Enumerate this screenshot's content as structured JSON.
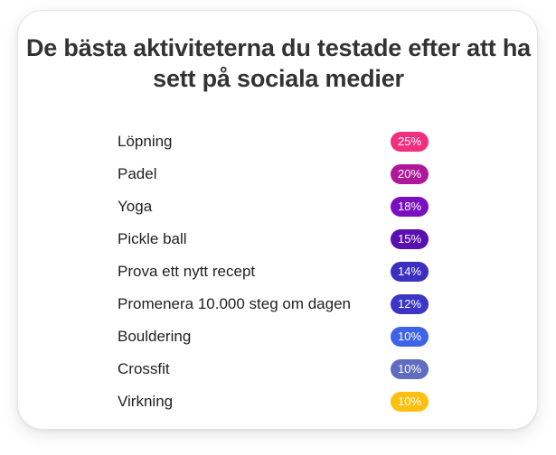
{
  "title": "De bästa aktiviteterna du testade efter att ha sett på sociala medier",
  "chart_data": {
    "type": "table",
    "title": "De bästa aktiviteterna du testade efter att ha sett på sociala medier",
    "unit": "%",
    "categories": [
      "Löpning",
      "Padel",
      "Yoga",
      "Pickle ball",
      "Prova ett nytt recept",
      "Promenera 10.000 steg om dagen",
      "Bouldering",
      "Crossfit",
      "Virkning"
    ],
    "values": [
      25,
      20,
      18,
      15,
      14,
      12,
      10,
      10,
      10
    ],
    "labels": [
      "25%",
      "20%",
      "18%",
      "15%",
      "14%",
      "12%",
      "10%",
      "10%",
      "10%"
    ],
    "colors": [
      "#f0307f",
      "#b0189a",
      "#7a0fc0",
      "#5a10b0",
      "#3c30c0",
      "#3c36c8",
      "#3f63e8",
      "#5f6cbf",
      "#fdc010"
    ]
  }
}
